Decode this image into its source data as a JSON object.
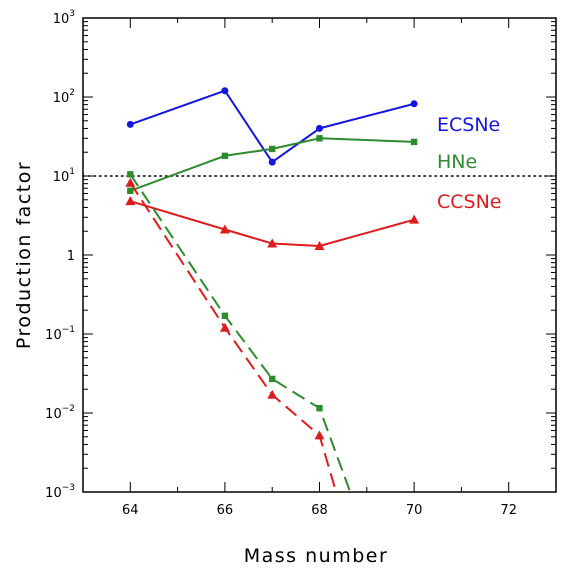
{
  "chart_data": {
    "type": "line",
    "xlabel": "Mass number",
    "ylabel": "Production factor",
    "xlim": [
      63,
      73
    ],
    "ylim": [
      0.001,
      1000
    ],
    "yscale": "log",
    "x_ticks": [
      64,
      66,
      68,
      70,
      72
    ],
    "y_ticks": [
      {
        "value": 0.001,
        "base": "10",
        "exp": "−3"
      },
      {
        "value": 0.01,
        "base": "10",
        "exp": "−2"
      },
      {
        "value": 0.1,
        "base": "10",
        "exp": "−1"
      },
      {
        "value": 1,
        "base": "1",
        "exp": ""
      },
      {
        "value": 10,
        "base": "10",
        "exp": "1"
      },
      {
        "value": 100,
        "base": "10",
        "exp": "2"
      },
      {
        "value": 1000,
        "base": "10",
        "exp": "3"
      }
    ],
    "reference_line": {
      "y": 10,
      "style": "dotted"
    },
    "grid": false,
    "legend_placement": "right",
    "series": [
      {
        "name": "ECSNe",
        "color": "#1515e0",
        "marker": "circle",
        "dashed": false,
        "x": [
          64,
          66,
          67,
          68,
          70
        ],
        "y": [
          45,
          120,
          15,
          40,
          82
        ]
      },
      {
        "name": "HNe",
        "color": "#2e8b2e",
        "marker": "square",
        "dashed": false,
        "x": [
          64,
          66,
          67,
          68,
          70
        ],
        "y": [
          6.5,
          18,
          22,
          30,
          27
        ]
      },
      {
        "name": "CCSNe",
        "color": "#dd1c1c",
        "marker": "triangle",
        "dashed": false,
        "x": [
          64,
          66,
          67,
          68,
          70
        ],
        "y": [
          4.8,
          2.1,
          1.4,
          1.3,
          2.8
        ]
      },
      {
        "color": "#2e8b2e",
        "marker": "square",
        "dashed": true,
        "x": [
          64,
          66,
          67,
          68,
          68.65
        ],
        "y": [
          10.5,
          0.17,
          0.027,
          0.0115,
          0.001
        ]
      },
      {
        "color": "#dd1c1c",
        "marker": "triangle",
        "dashed": true,
        "x": [
          64,
          66,
          67,
          68,
          68.35
        ],
        "y": [
          8.2,
          0.12,
          0.017,
          0.0052,
          0.001
        ]
      }
    ]
  }
}
